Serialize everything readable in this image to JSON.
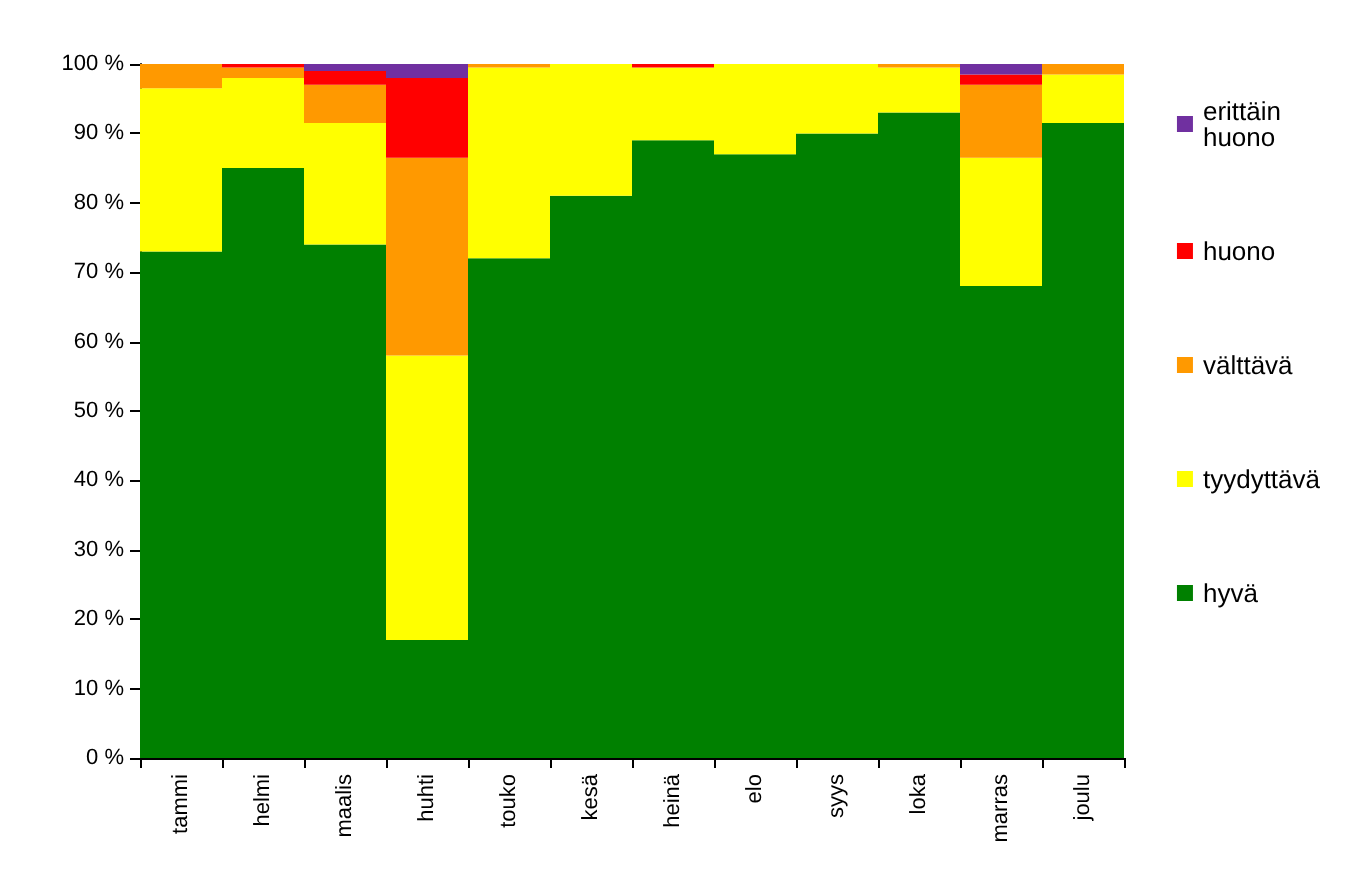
{
  "chart_data": {
    "type": "bar",
    "stacked": true,
    "categories": [
      "tammi",
      "helmi",
      "maalis",
      "huhti",
      "touko",
      "kesä",
      "heinä",
      "elo",
      "syys",
      "loka",
      "marras",
      "joulu"
    ],
    "series": [
      {
        "name": "hyvä",
        "color": "#008000",
        "values": [
          73,
          85,
          74,
          17,
          72,
          81,
          89,
          87,
          90,
          93,
          68,
          91.5
        ]
      },
      {
        "name": "tyydyttävä",
        "color": "#ffff00",
        "values": [
          23.5,
          13,
          17.5,
          41,
          27.5,
          19,
          10.5,
          13,
          10,
          6.5,
          18.5,
          7
        ]
      },
      {
        "name": "välttävä",
        "color": "#ff9900",
        "values": [
          3.5,
          1.5,
          5.5,
          28.5,
          0.5,
          0,
          0,
          0,
          0,
          0.5,
          10.5,
          1.5
        ]
      },
      {
        "name": "huono",
        "color": "#ff0000",
        "values": [
          0,
          0.5,
          2,
          11.5,
          0,
          0,
          0.5,
          0,
          0,
          0,
          1.5,
          0
        ]
      },
      {
        "name": "erittäin huono",
        "color": "#7030a0",
        "values": [
          0,
          0,
          1,
          2,
          0,
          0,
          0,
          0,
          0,
          0,
          1.5,
          0
        ]
      }
    ],
    "ylim": [
      0,
      100
    ],
    "yticks": [
      {
        "value": 0,
        "label": "0 %"
      },
      {
        "value": 10,
        "label": "10 %"
      },
      {
        "value": 20,
        "label": "20 %"
      },
      {
        "value": 30,
        "label": "30 %"
      },
      {
        "value": 40,
        "label": "40 %"
      },
      {
        "value": 50,
        "label": "50 %"
      },
      {
        "value": 60,
        "label": "60 %"
      },
      {
        "value": 70,
        "label": "70 %"
      },
      {
        "value": 80,
        "label": "80 %"
      },
      {
        "value": 90,
        "label": "90 %"
      },
      {
        "value": 100,
        "label": "100 %"
      }
    ],
    "grid": false,
    "legend": "right"
  }
}
